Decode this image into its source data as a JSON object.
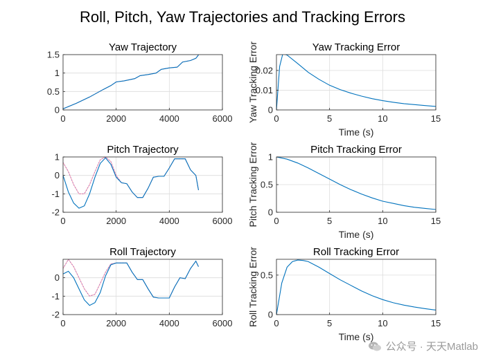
{
  "figure": {
    "suptitle": "Roll, Pitch, Yaw Trajectories and Tracking Errors",
    "watermark": "公众号 · 天天Matlab"
  },
  "colors": {
    "actual": "#0072bd",
    "reference": "#f5a9b8",
    "reference_dots": "#8a4fbf",
    "axis": "#262626",
    "grid": "#dcdcdc"
  },
  "chart_data": [
    {
      "id": "yaw-trajectory",
      "type": "line",
      "title": "Yaw Trajectory",
      "xlabel": "",
      "ylabel": "",
      "xlim": [
        0,
        6000
      ],
      "ylim": [
        0,
        1.5
      ],
      "xticks": [
        0,
        2000,
        4000,
        6000
      ],
      "yticks": [
        0,
        0.5,
        1,
        1.5
      ],
      "grid": true,
      "series": [
        {
          "role": "reference",
          "x": [
            0,
            500,
            1000,
            1500,
            1800,
            2000,
            2300,
            2700,
            2900,
            3200,
            3500,
            3700,
            4000,
            4300,
            4500,
            4800,
            5000,
            5100
          ],
          "y": [
            0.03,
            0.18,
            0.35,
            0.55,
            0.66,
            0.76,
            0.79,
            0.85,
            0.93,
            0.96,
            1.0,
            1.1,
            1.14,
            1.16,
            1.3,
            1.34,
            1.4,
            1.5
          ]
        },
        {
          "role": "actual",
          "x": [
            0,
            500,
            1000,
            1500,
            1800,
            2000,
            2300,
            2700,
            2900,
            3200,
            3500,
            3700,
            4000,
            4300,
            4500,
            4800,
            5000,
            5100
          ],
          "y": [
            0.03,
            0.18,
            0.35,
            0.55,
            0.66,
            0.76,
            0.79,
            0.85,
            0.93,
            0.96,
            1.0,
            1.1,
            1.14,
            1.16,
            1.3,
            1.34,
            1.4,
            1.49
          ]
        }
      ]
    },
    {
      "id": "yaw-tracking-error",
      "type": "line",
      "title": "Yaw Tracking Error",
      "xlabel": "Time (s)",
      "ylabel": "Yaw Tracking Error",
      "xlim": [
        0,
        15
      ],
      "ylim": [
        0,
        0.028
      ],
      "xticks": [
        0,
        5,
        10,
        15
      ],
      "yticks": [
        0,
        0.01,
        0.02
      ],
      "grid": true,
      "series": [
        {
          "role": "actual",
          "x": [
            0,
            0.3,
            0.6,
            1,
            2,
            3,
            4,
            5,
            6,
            7,
            8,
            9,
            10,
            11,
            12,
            13,
            14,
            15
          ],
          "y": [
            0,
            0.022,
            0.0285,
            0.0278,
            0.0235,
            0.019,
            0.0155,
            0.0125,
            0.0103,
            0.0085,
            0.007,
            0.0057,
            0.0047,
            0.0039,
            0.0032,
            0.0027,
            0.0022,
            0.0018
          ]
        }
      ]
    },
    {
      "id": "pitch-trajectory",
      "type": "line",
      "title": "Pitch Trajectory",
      "xlabel": "",
      "ylabel": "",
      "xlim": [
        0,
        6000
      ],
      "ylim": [
        -2,
        1
      ],
      "xticks": [
        0,
        2000,
        4000,
        6000
      ],
      "yticks": [
        -2,
        -1,
        0,
        1
      ],
      "grid": true,
      "series": [
        {
          "role": "reference",
          "x": [
            0,
            200,
            400,
            600,
            800,
            1000,
            1200,
            1400,
            1600,
            1800,
            2000,
            2200,
            2400,
            2600,
            2800,
            3000,
            3200,
            3400,
            3600,
            3800,
            4000,
            4200,
            4400,
            4600,
            4800,
            5000,
            5100
          ],
          "y": [
            0.7,
            0.2,
            -0.5,
            -1.0,
            -1.0,
            -0.5,
            0.2,
            0.85,
            1.0,
            0.75,
            0.0,
            -0.4,
            -0.45,
            -0.9,
            -1.2,
            -1.2,
            -0.7,
            -0.1,
            -0.05,
            -0.05,
            0.4,
            0.9,
            0.9,
            0.9,
            0.3,
            0.0,
            -0.8
          ]
        },
        {
          "role": "actual",
          "x": [
            0,
            200,
            400,
            600,
            800,
            1000,
            1200,
            1400,
            1600,
            1800,
            2000,
            2200,
            2400,
            2600,
            2800,
            3000,
            3200,
            3400,
            3600,
            3800,
            4000,
            4200,
            4400,
            4600,
            4800,
            5000,
            5100
          ],
          "y": [
            0,
            -0.9,
            -1.5,
            -1.78,
            -1.65,
            -1.0,
            -0.1,
            0.65,
            0.95,
            0.6,
            -0.1,
            -0.4,
            -0.45,
            -0.9,
            -1.2,
            -1.2,
            -0.7,
            -0.1,
            -0.05,
            -0.05,
            0.4,
            0.9,
            0.9,
            0.9,
            0.3,
            0.0,
            -0.8
          ]
        }
      ]
    },
    {
      "id": "pitch-tracking-error",
      "type": "line",
      "title": "Pitch Tracking Error",
      "xlabel": "Time (s)",
      "ylabel": "Pitch Tracking Error",
      "xlim": [
        0,
        15
      ],
      "ylim": [
        0,
        1
      ],
      "xticks": [
        0,
        5,
        10,
        15
      ],
      "yticks": [
        0,
        0.5,
        1
      ],
      "grid": true,
      "series": [
        {
          "role": "actual",
          "x": [
            0,
            1,
            2,
            3,
            4,
            5,
            6,
            7,
            8,
            9,
            10,
            11,
            12,
            13,
            14,
            15
          ],
          "y": [
            1.0,
            0.96,
            0.89,
            0.8,
            0.7,
            0.6,
            0.5,
            0.41,
            0.33,
            0.26,
            0.2,
            0.16,
            0.12,
            0.09,
            0.07,
            0.05
          ]
        }
      ]
    },
    {
      "id": "roll-trajectory",
      "type": "line",
      "title": "Roll Trajectory",
      "xlabel": "",
      "ylabel": "",
      "xlim": [
        0,
        6000
      ],
      "ylim": [
        -2,
        1
      ],
      "xticks": [
        0,
        2000,
        4000,
        6000
      ],
      "yticks": [
        -2,
        -1,
        0
      ],
      "grid": true,
      "series": [
        {
          "role": "reference",
          "x": [
            0,
            200,
            400,
            600,
            800,
            1000,
            1200,
            1400,
            1600,
            1800,
            2000,
            2200,
            2400,
            2600,
            2800,
            3000,
            3200,
            3400,
            3600,
            3800,
            4000,
            4200,
            4400,
            4600,
            4800,
            5000,
            5100
          ],
          "y": [
            0.5,
            1.0,
            0.6,
            0.0,
            -0.6,
            -1.0,
            -0.9,
            -0.3,
            0.3,
            0.75,
            0.8,
            0.8,
            0.8,
            0.3,
            -0.1,
            -0.1,
            -0.6,
            -1.05,
            -1.1,
            -1.1,
            -1.1,
            -0.5,
            0.0,
            -0.05,
            0.5,
            0.9,
            0.6
          ]
        },
        {
          "role": "actual",
          "x": [
            0,
            200,
            400,
            600,
            800,
            1000,
            1200,
            1400,
            1600,
            1800,
            2000,
            2200,
            2400,
            2600,
            2800,
            3000,
            3200,
            3400,
            3600,
            3800,
            4000,
            4200,
            4400,
            4600,
            4800,
            5000,
            5100
          ],
          "y": [
            0.2,
            0.35,
            0.0,
            -0.6,
            -1.2,
            -1.5,
            -1.35,
            -0.8,
            0.1,
            0.7,
            0.8,
            0.8,
            0.8,
            0.3,
            -0.1,
            -0.1,
            -0.6,
            -1.05,
            -1.1,
            -1.1,
            -1.1,
            -0.5,
            0.0,
            -0.05,
            0.5,
            0.9,
            0.6
          ]
        }
      ]
    },
    {
      "id": "roll-tracking-error",
      "type": "line",
      "title": "Roll Tracking Error",
      "xlabel": "Time (s)",
      "ylabel": "Roll Tracking Error",
      "xlim": [
        0,
        15
      ],
      "ylim": [
        0,
        0.7
      ],
      "xticks": [
        0,
        5,
        10,
        15
      ],
      "yticks": [
        0,
        0.5
      ],
      "grid": true,
      "series": [
        {
          "role": "actual",
          "x": [
            0,
            0.5,
            1,
            1.5,
            2,
            2.5,
            3,
            4,
            5,
            6,
            7,
            8,
            9,
            10,
            11,
            12,
            13,
            14,
            15
          ],
          "y": [
            0,
            0.4,
            0.6,
            0.67,
            0.69,
            0.685,
            0.67,
            0.6,
            0.52,
            0.44,
            0.37,
            0.3,
            0.24,
            0.19,
            0.15,
            0.12,
            0.095,
            0.075,
            0.058
          ]
        }
      ]
    }
  ]
}
